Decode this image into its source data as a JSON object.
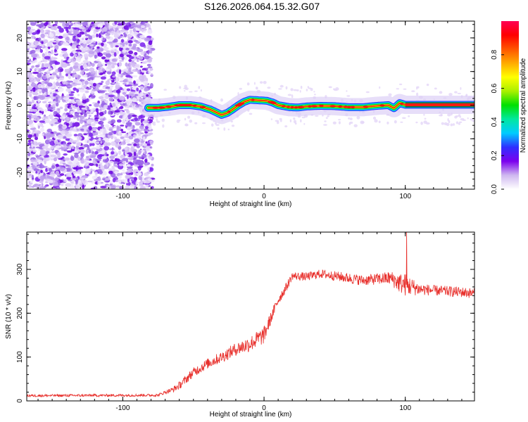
{
  "title": "S126.2026.064.15.32.G07",
  "colors": {
    "snr_line": "#e8302c",
    "frame": "#000000",
    "background": "#ffffff"
  },
  "chart_data": [
    {
      "type": "heatmap",
      "name": "spectrogram",
      "xlabel": "Height of straight line (km)",
      "ylabel": "Frequency (Hz)",
      "xlim": [
        -168,
        149
      ],
      "ylim": [
        -25,
        25
      ],
      "xticks": [
        -100,
        0,
        100
      ],
      "yticks": [
        -20,
        -10,
        0,
        10,
        20
      ],
      "noise_region_x": [
        -168,
        -82
      ],
      "ridge": {
        "x": [
          -82,
          -75,
          -68,
          -60,
          -52,
          -45,
          -38,
          -33,
          -30,
          -26,
          -22,
          -18,
          -14,
          -10,
          -6,
          -2,
          2,
          6,
          10,
          14,
          18,
          24,
          30,
          40,
          50,
          60,
          70,
          80,
          88,
          92,
          96,
          100,
          110,
          120,
          130,
          140,
          149
        ],
        "freq": [
          -0.8,
          -0.8,
          -0.5,
          0.0,
          0.0,
          -0.4,
          -1.3,
          -2.3,
          -2.9,
          -2.3,
          -1.2,
          0.0,
          1.0,
          1.6,
          1.5,
          1.4,
          1.3,
          0.8,
          0.0,
          -0.3,
          -0.6,
          -0.7,
          -0.4,
          -0.2,
          -0.3,
          -0.6,
          -0.6,
          -0.2,
          0.0,
          -0.9,
          0.6,
          0.1,
          0.1,
          0.1,
          0.1,
          0.1,
          0.1
        ]
      }
    },
    {
      "type": "line",
      "name": "snr",
      "xlabel": "Height of straight line (km)",
      "ylabel": "SNR (10 * v/v)",
      "xlim": [
        -168,
        149
      ],
      "ylim": [
        0,
        385
      ],
      "xticks": [
        -100,
        0,
        100
      ],
      "yticks": [
        0,
        100,
        200,
        300
      ],
      "anchors": {
        "x": [
          -168,
          -75,
          -70,
          -65,
          -60,
          -55,
          -50,
          -40,
          -30,
          -20,
          -10,
          0,
          5,
          10,
          15,
          20,
          30,
          40,
          50,
          60,
          70,
          80,
          90,
          95,
          100,
          105,
          110,
          120,
          130,
          140,
          149
        ],
        "y": [
          12,
          13,
          20,
          25,
          35,
          50,
          65,
          85,
          100,
          118,
          130,
          150,
          190,
          230,
          255,
          285,
          283,
          290,
          285,
          280,
          275,
          278,
          280,
          270,
          265,
          260,
          255,
          252,
          250,
          248,
          245
        ]
      },
      "noise_amplitude": [
        3,
        3,
        4,
        6,
        9,
        10,
        11,
        12,
        13,
        15,
        18,
        20,
        14,
        12,
        11,
        9,
        10,
        10,
        11,
        12,
        12,
        13,
        16,
        22,
        26,
        20,
        14,
        12,
        12,
        12,
        12
      ],
      "peak": {
        "x": 101,
        "y": 385
      }
    },
    {
      "type": "colorbar",
      "name": "amplitude-colorbar",
      "label": "Normalized spectral amplitude",
      "range": [
        0,
        1
      ],
      "ticks": [
        "0.0",
        "0.2",
        "0.4",
        "0.6",
        "0.8"
      ],
      "stops": [
        "#ffffff",
        "#cfb8f0",
        "#7b00ee",
        "#2f2fff",
        "#00ccff",
        "#00e8a0",
        "#00e000",
        "#aaf000",
        "#ffff00",
        "#ffaa00",
        "#ff5500",
        "#ff0000",
        "#ff0055"
      ]
    }
  ]
}
